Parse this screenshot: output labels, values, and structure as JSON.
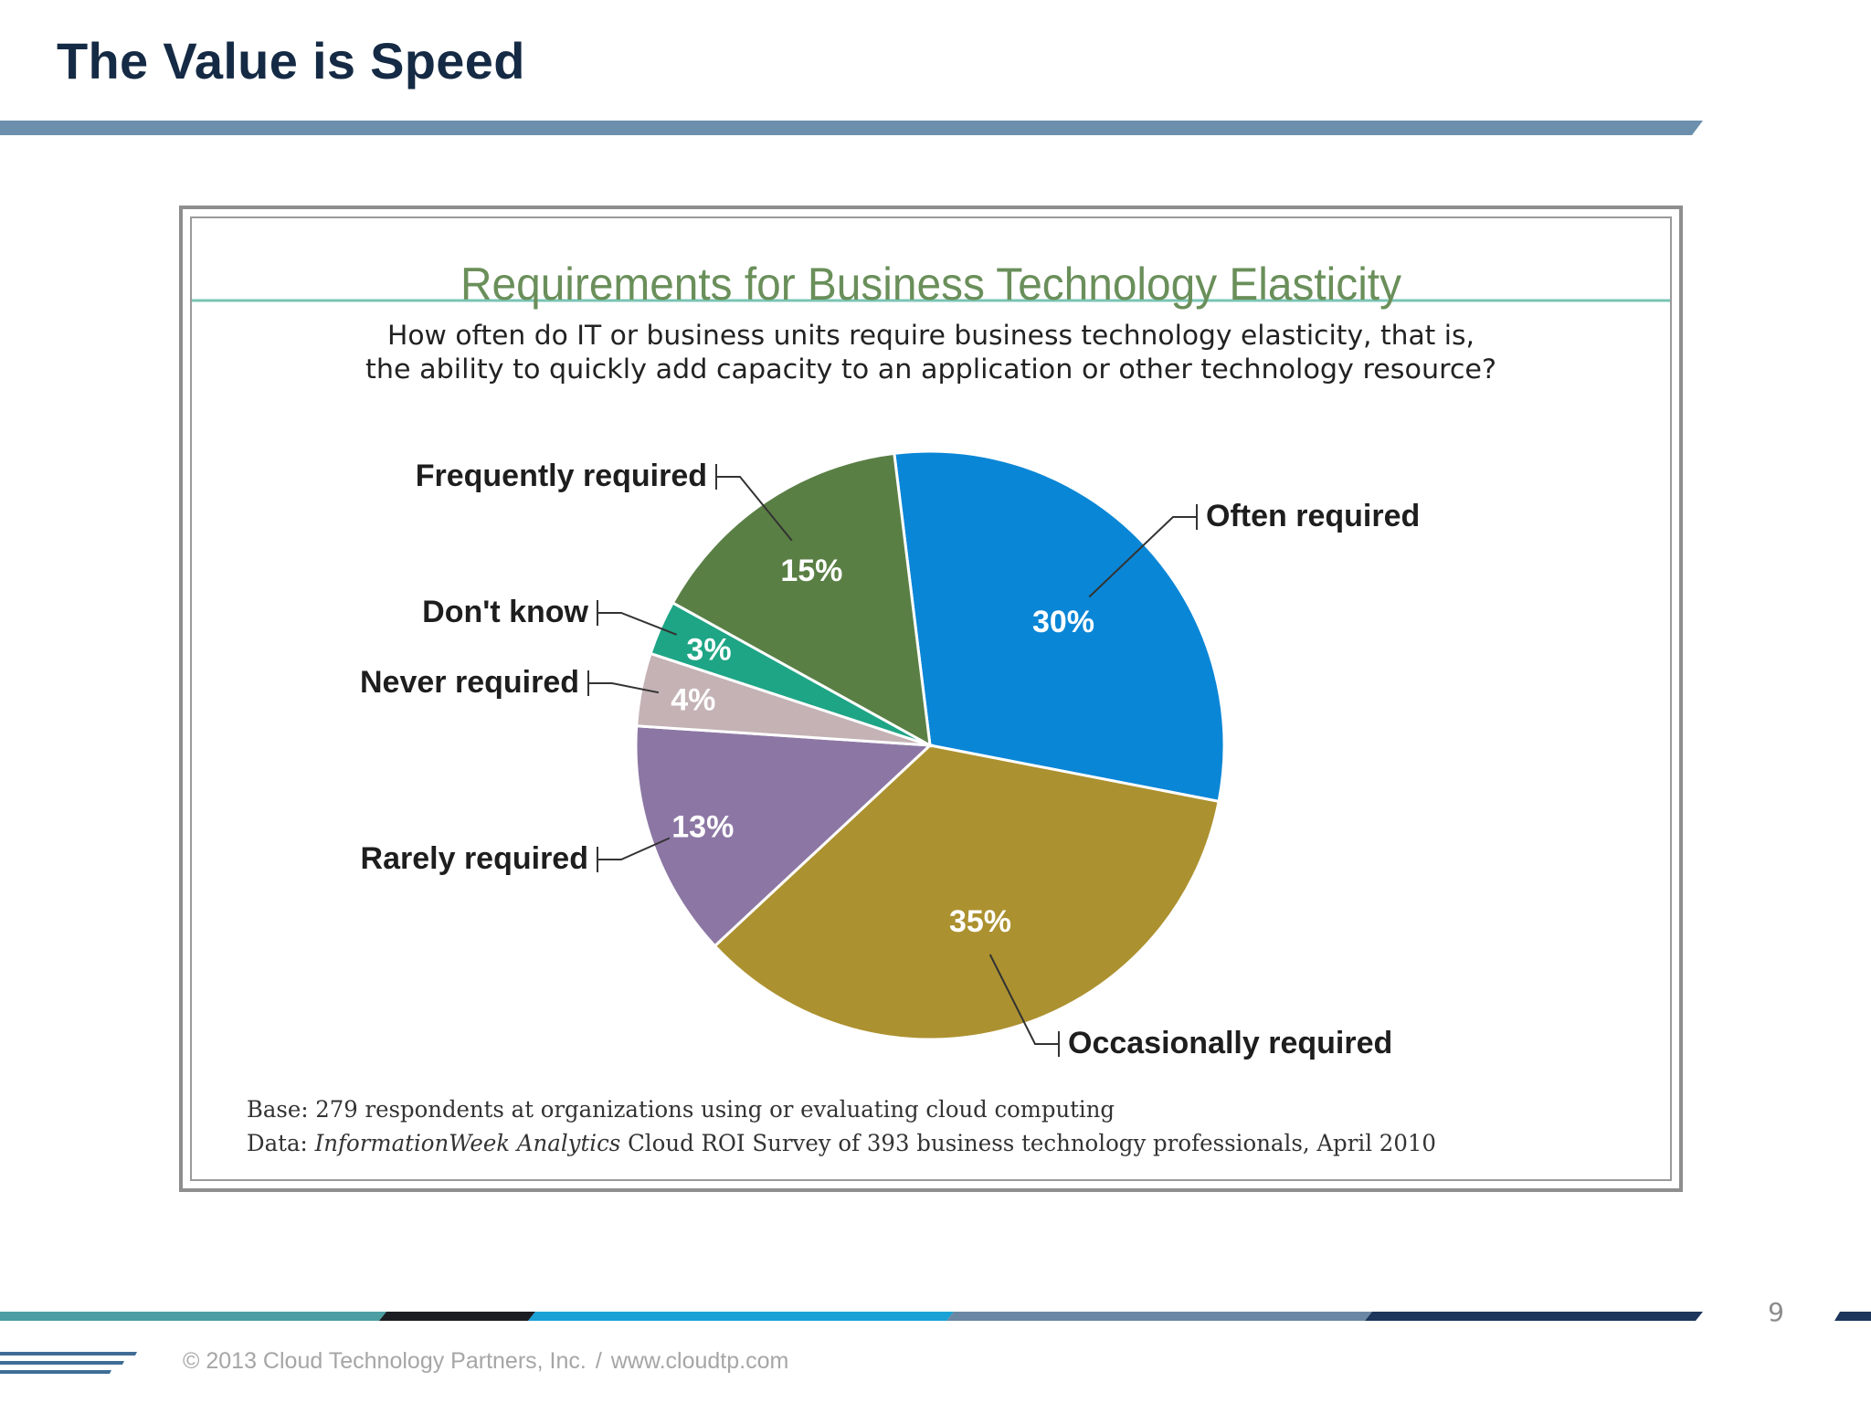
{
  "slide": {
    "title": "The Value is Speed",
    "page_number": "9",
    "footer_copyright": "© 2013 Cloud Technology Partners, Inc.",
    "footer_separator": "/",
    "footer_url": "www.cloudtp.com"
  },
  "colors": {
    "title": "#152a44",
    "rule": "#6b8fad",
    "chart_title": "#6a8f5a",
    "chart_rule": "#7ac4b4"
  },
  "chart_data": {
    "type": "pie",
    "title": "Requirements for Business Technology Elasticity",
    "subtitle_lines": [
      "How often do IT or business units require business technology elasticity, that is,",
      "the ability to quickly add capacity to an application or other technology resource?"
    ],
    "slices": [
      {
        "label": "Often required",
        "value": 30,
        "value_label": "30%",
        "color": "#0a86d6"
      },
      {
        "label": "Occasionally required",
        "value": 35,
        "value_label": "35%",
        "color": "#ac9130"
      },
      {
        "label": "Rarely required",
        "value": 13,
        "value_label": "13%",
        "color": "#8c77a4"
      },
      {
        "label": "Never required",
        "value": 4,
        "value_label": "4%",
        "color": "#c4b2b5"
      },
      {
        "label": "Don't know",
        "value": 3,
        "value_label": "3%",
        "color": "#1ea585"
      },
      {
        "label": "Frequently required",
        "value": 15,
        "value_label": "15%",
        "color": "#5a7f45"
      }
    ],
    "notes": {
      "base": "Base: 279 respondents at organizations using or evaluating cloud computing",
      "data_prefix": "Data: ",
      "data_source": "InformationWeek Analytics",
      "data_rest": " Cloud ROI Survey of 393 business technology professionals, April 2010"
    }
  }
}
